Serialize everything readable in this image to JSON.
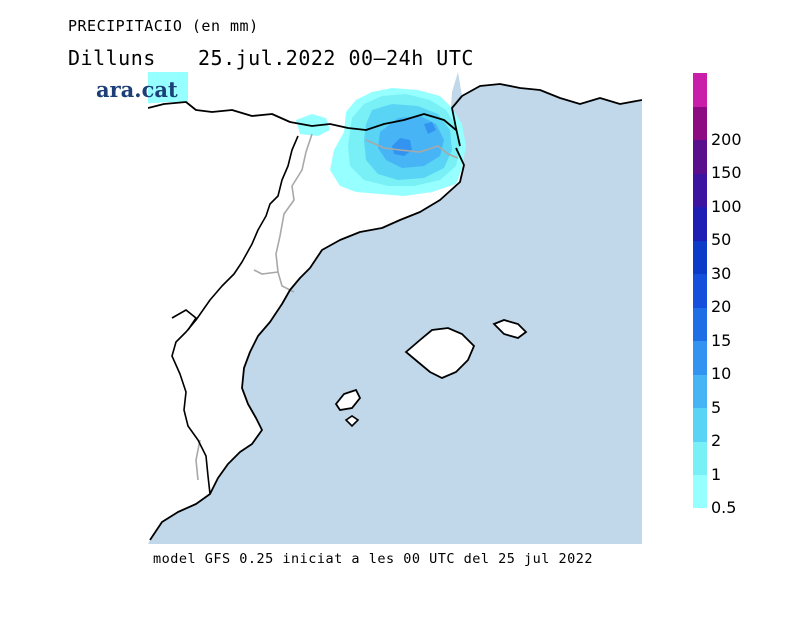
{
  "header": {
    "title": "PRECIPITACIO (en mm)",
    "day": "Dilluns",
    "date_range": "25.jul.2022 00–24h UTC"
  },
  "logo": {
    "text": "ara.cat",
    "color": "#1c3f77"
  },
  "map": {
    "sea_color": "#c0d8ea",
    "land_color": "#ffffff",
    "coast_color": "#000000",
    "border_color": "#a8a8a8"
  },
  "legend": {
    "levels": [
      {
        "label": "0.5",
        "color": "#96ffff"
      },
      {
        "label": "1",
        "color": "#78f0f5"
      },
      {
        "label": "2",
        "color": "#5ad4f5"
      },
      {
        "label": "5",
        "color": "#46b4f5"
      },
      {
        "label": "10",
        "color": "#3294f0"
      },
      {
        "label": "15",
        "color": "#1e6ee6"
      },
      {
        "label": "20",
        "color": "#1450dc"
      },
      {
        "label": "30",
        "color": "#0a3cc8"
      },
      {
        "label": "50",
        "color": "#1e1eb4"
      },
      {
        "label": "100",
        "color": "#3c14a0"
      },
      {
        "label": "150",
        "color": "#5a0f8c"
      },
      {
        "label": "200",
        "color": "#8c0a82"
      },
      {
        "label": "",
        "color": "#c81eaa"
      }
    ]
  },
  "footer": {
    "text": "model GFS 0.25 iniciat a les 00 UTC del 25 jul 2022"
  }
}
